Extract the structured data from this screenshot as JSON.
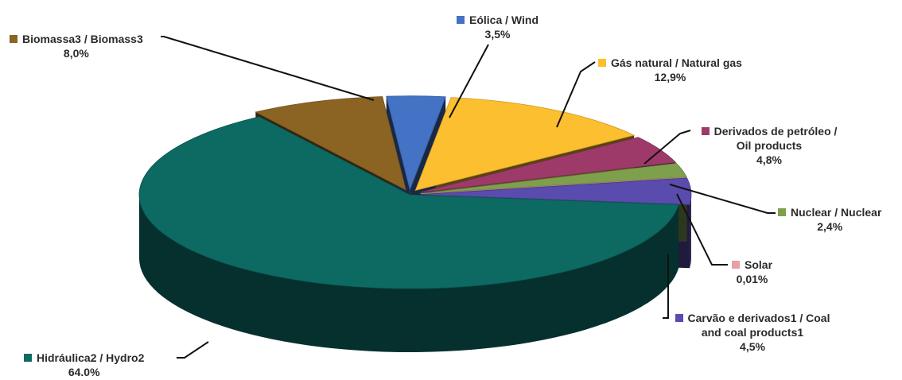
{
  "chart_data": {
    "type": "pie",
    "title": "",
    "slices": [
      {
        "name": "Eólica / Wind",
        "value": 3.5,
        "label": "3,5%",
        "color": "#4472c4"
      },
      {
        "name": "Gás natural / Natural gas",
        "value": 12.9,
        "label": "12,9%",
        "color": "#fbbf2f"
      },
      {
        "name": "Derivados de petróleo / Oil products",
        "value": 4.8,
        "label": "4,8%",
        "color": "#9e3a6a"
      },
      {
        "name": "Nuclear / Nuclear",
        "value": 2.4,
        "label": "2,4%",
        "color": "#7ea04d"
      },
      {
        "name": "Solar",
        "value": 0.01,
        "label": "0,01%",
        "color": "#e8a0a8"
      },
      {
        "name": "Carvão e derivados1 / Coal and coal products1",
        "value": 4.5,
        "label": "4,5%",
        "color": "#5a4cae"
      },
      {
        "name": "Hidráulica2 / Hydro2",
        "value": 64.0,
        "label": "64.0%",
        "color": "#0c6a63"
      },
      {
        "name": "Biomassa3 / Biomass3",
        "value": 8.0,
        "label": "8,0%",
        "color": "#8b6424"
      }
    ]
  }
}
